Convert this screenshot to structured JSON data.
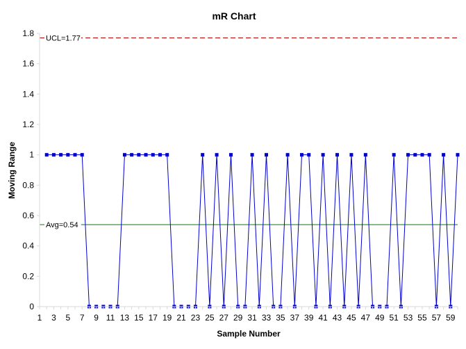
{
  "chart_data": {
    "type": "line",
    "title": "mR Chart",
    "xlabel": "Sample Number",
    "ylabel": "Moving Range",
    "ylim": [
      0,
      1.8
    ],
    "y_ticks": [
      "0",
      "0.2",
      "0.4",
      "0.6",
      "0.8",
      "1",
      "1.2",
      "1.4",
      "1.6",
      "1.8"
    ],
    "x_tick_labels": [
      "1",
      "3",
      "5",
      "7",
      "9",
      "11",
      "13",
      "15",
      "17",
      "19",
      "21",
      "23",
      "25",
      "27",
      "29",
      "31",
      "33",
      "35",
      "37",
      "39",
      "41",
      "43",
      "45",
      "47",
      "49",
      "51",
      "53",
      "55",
      "57",
      "59"
    ],
    "x": [
      2,
      3,
      4,
      5,
      6,
      7,
      8,
      9,
      10,
      11,
      12,
      13,
      14,
      15,
      16,
      17,
      18,
      19,
      20,
      21,
      22,
      23,
      24,
      25,
      26,
      27,
      28,
      29,
      30,
      31,
      32,
      33,
      34,
      35,
      36,
      37,
      38,
      39,
      40,
      41,
      42,
      43,
      44,
      45,
      46,
      47,
      48,
      49,
      50,
      51,
      52,
      53,
      54,
      55,
      56,
      57,
      58,
      59,
      60
    ],
    "series": [
      {
        "values": [
          1,
          1,
          1,
          1,
          1,
          1,
          0,
          0,
          0,
          0,
          0,
          1,
          1,
          1,
          1,
          1,
          1,
          1,
          0,
          0,
          0,
          0,
          1,
          0,
          1,
          0,
          1,
          0,
          0,
          1,
          0,
          1,
          0,
          0,
          1,
          0,
          1,
          1,
          0,
          1,
          0,
          1,
          0,
          1,
          0,
          1,
          0,
          0,
          0,
          1,
          0,
          1,
          1,
          1,
          1,
          0,
          1,
          0,
          1
        ],
        "color": "#0000cc"
      }
    ],
    "reference_lines": [
      {
        "label": "UCL=1.77",
        "value": 1.77,
        "color": "#c00000",
        "style": "dashed"
      },
      {
        "label": "Avg=0.54",
        "value": 0.54,
        "color": "#008000",
        "style": "solid"
      }
    ],
    "grid": false,
    "legend": "none"
  }
}
